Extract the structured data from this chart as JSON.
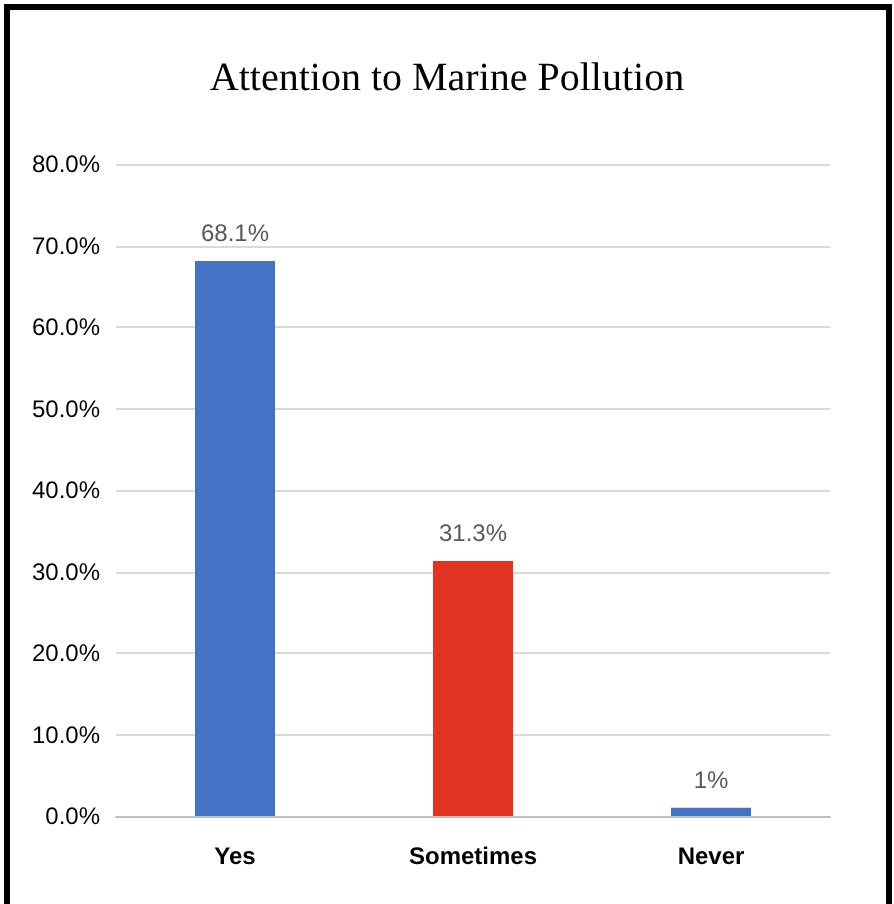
{
  "chart_data": {
    "type": "bar",
    "title": "Attention to Marine Pollution",
    "categories": [
      "Yes",
      "Sometimes",
      "Never"
    ],
    "values": [
      68.1,
      31.3,
      1
    ],
    "colors": [
      "#4472c4",
      "#e03322",
      "#4472c4"
    ],
    "value_labels": [
      "68.1%",
      "31.3%",
      "1%"
    ],
    "ylim": [
      0,
      80
    ],
    "yticks": [
      {
        "value": 0,
        "label": "0.0%"
      },
      {
        "value": 10,
        "label": "10.0%"
      },
      {
        "value": 20,
        "label": "20.0%"
      },
      {
        "value": 30,
        "label": "30.0%"
      },
      {
        "value": 40,
        "label": "40.0%"
      },
      {
        "value": 50,
        "label": "50.0%"
      },
      {
        "value": 60,
        "label": "60.0%"
      },
      {
        "value": 70,
        "label": "70.0%"
      },
      {
        "value": 80,
        "label": "80.0%"
      }
    ],
    "grid": "y"
  }
}
